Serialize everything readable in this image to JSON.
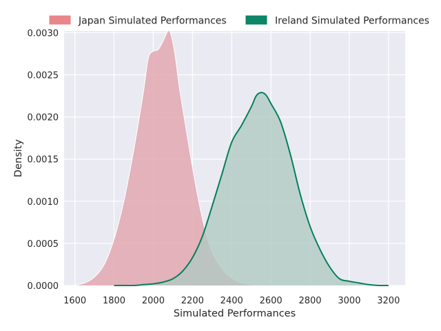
{
  "chart_data": {
    "type": "area",
    "title": "",
    "xlabel": "Simulated Performances",
    "ylabel": "Density",
    "xlim": [
      1545,
      3285
    ],
    "ylim": [
      0,
      0.00302
    ],
    "x_ticks": [
      1600,
      1800,
      2000,
      2200,
      2400,
      2600,
      2800,
      3000,
      3200
    ],
    "x_tick_labels": [
      "1600",
      "1800",
      "2000",
      "2200",
      "2400",
      "2600",
      "2800",
      "3000",
      "3200"
    ],
    "y_ticks": [
      0.0,
      0.0005,
      0.001,
      0.0015,
      0.002,
      0.0025,
      0.003
    ],
    "y_tick_labels": [
      "0.0000",
      "0.0005",
      "0.0010",
      "0.0015",
      "0.0020",
      "0.0025",
      "0.0030"
    ],
    "grid": true,
    "legend_position": "top, above plot",
    "background": "#EAEAF2",
    "series": [
      {
        "name": "Japan Simulated Performances",
        "color": "#E88083",
        "fill_color": "#E0A2AB",
        "line_color": "#FFFFFF",
        "x": [
          1600,
          1650,
          1700,
          1750,
          1800,
          1850,
          1900,
          1950,
          1975,
          2000,
          2025,
          2050,
          2075,
          2090,
          2110,
          2130,
          2150,
          2175,
          2200,
          2225,
          2250,
          2275,
          2300,
          2350,
          2400,
          2450,
          2500,
          2550
        ],
        "y": [
          0.0,
          3e-05,
          0.0001,
          0.00025,
          0.00055,
          0.001,
          0.0016,
          0.0023,
          0.0027,
          0.00278,
          0.0028,
          0.0029,
          0.00302,
          0.00298,
          0.00275,
          0.0024,
          0.0021,
          0.00175,
          0.0014,
          0.00108,
          0.0008,
          0.00057,
          0.0004,
          0.0002,
          9e-05,
          3e-05,
          1e-05,
          0.0
        ]
      },
      {
        "name": "Ireland Simulated Performances",
        "color": "#008060",
        "fill_color": "#AFC9C1",
        "line_color": "#00805A",
        "x": [
          1800,
          1900,
          1950,
          2000,
          2050,
          2100,
          2150,
          2200,
          2250,
          2300,
          2350,
          2400,
          2450,
          2500,
          2525,
          2550,
          2575,
          2600,
          2650,
          2700,
          2750,
          2800,
          2850,
          2900,
          2950,
          3000,
          3050,
          3100,
          3150,
          3200
        ],
        "y": [
          0.0,
          0.0,
          1e-05,
          2e-05,
          4e-05,
          8e-05,
          0.00017,
          0.00033,
          0.00058,
          0.00094,
          0.00132,
          0.0017,
          0.0019,
          0.00212,
          0.00225,
          0.00229,
          0.00226,
          0.00216,
          0.00194,
          0.00155,
          0.00108,
          0.0007,
          0.00043,
          0.00022,
          8e-05,
          5e-05,
          3e-05,
          1e-05,
          0.0,
          0.0
        ]
      }
    ]
  }
}
